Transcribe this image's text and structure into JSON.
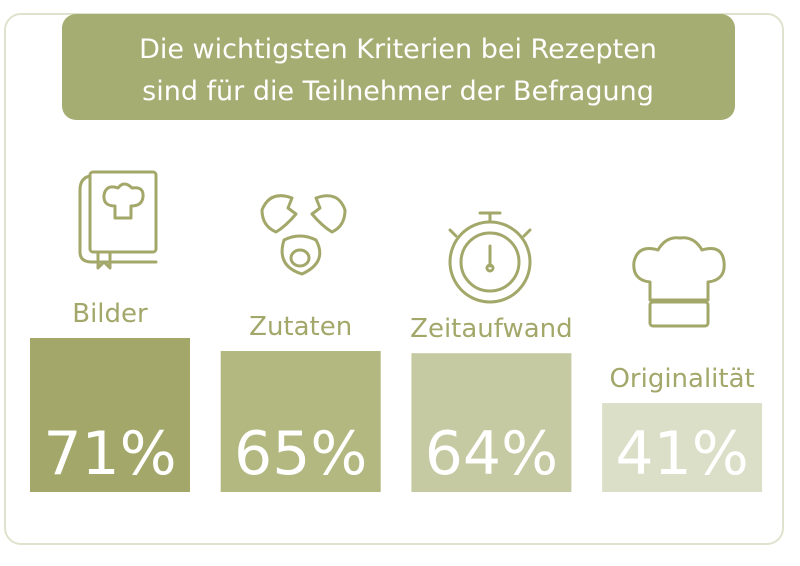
{
  "chart_data": {
    "type": "bar",
    "title": [
      "Die wichtigsten Kriterien bei Rezepten",
      "sind für die Teilnehmer der Befragung"
    ],
    "categories": [
      "Bilder",
      "Zutaten",
      "Zeitaufwand",
      "Originalität"
    ],
    "values": [
      71,
      65,
      64,
      41
    ],
    "value_labels": [
      "71%",
      "65%",
      "64%",
      "41%"
    ],
    "colors": [
      "#a3a86a",
      "#b3b880",
      "#c6caa2",
      "#dcdfc8"
    ],
    "label_color": "#a3a86a",
    "title_color": "#a6ad72"
  }
}
